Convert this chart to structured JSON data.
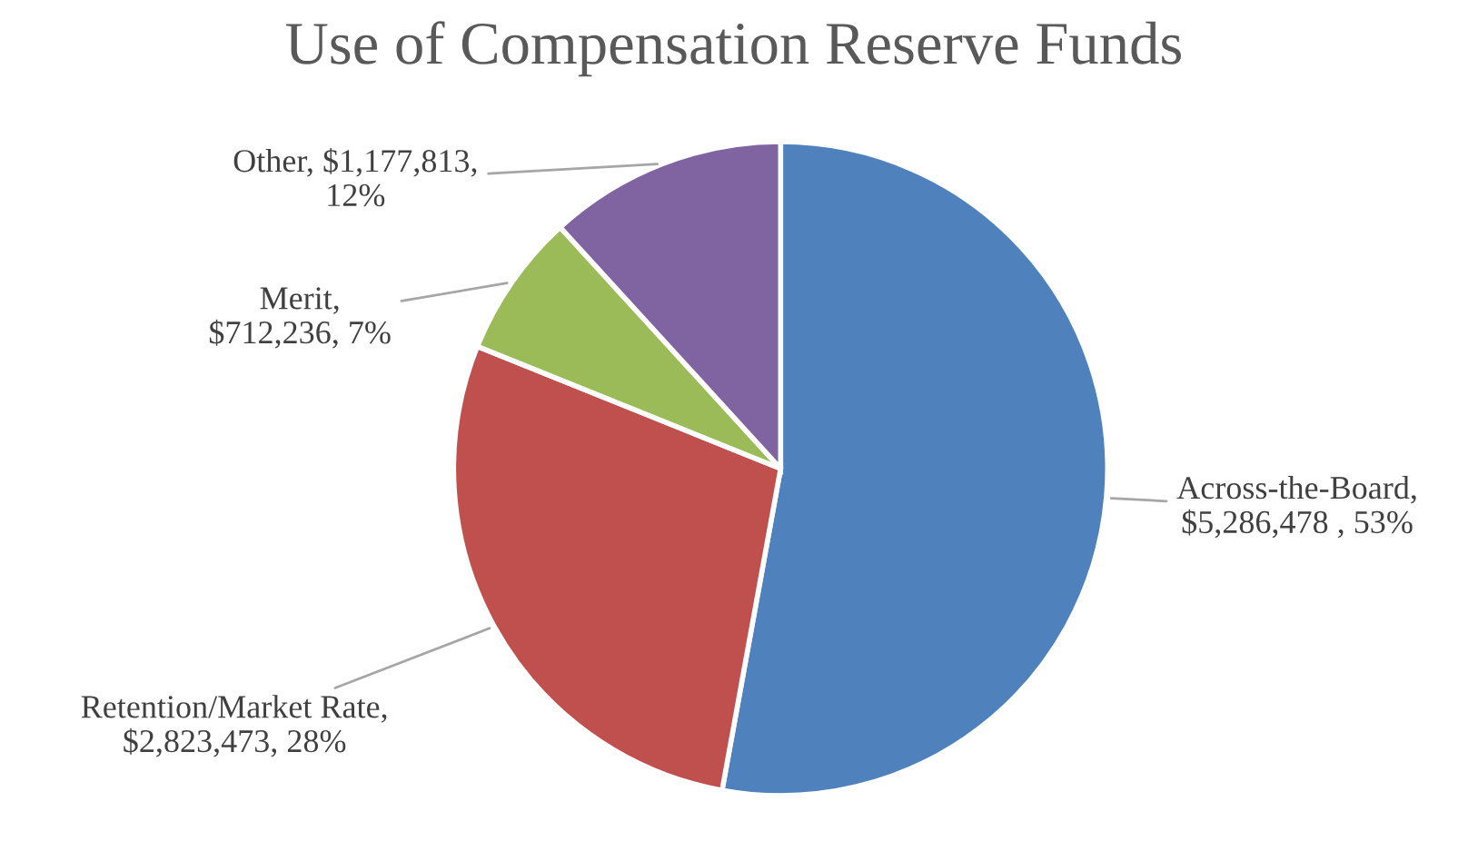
{
  "chart_data": {
    "type": "pie",
    "title": "Use of Compensation Reserve Funds",
    "categories": [
      "Across-the-Board",
      "Retention/Market Rate",
      "Merit",
      "Other"
    ],
    "values": [
      5286478,
      2823473,
      712236,
      1177813
    ],
    "value_labels": [
      ",\n$5,286,478 , 53%",
      ",\n$2,823,473, 28%",
      ",\n$712,236, 7%",
      ", $1,177,813,\n12%"
    ],
    "colors": [
      "#4f81bd",
      "#c0504d",
      "#9bbb59",
      "#8064a2"
    ],
    "legend": false
  }
}
